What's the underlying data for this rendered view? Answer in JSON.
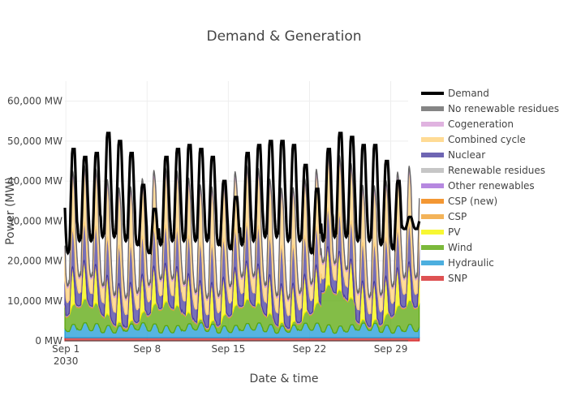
{
  "chart_data": {
    "type": "area",
    "title": "Demand & Generation",
    "xlabel": "Date & time",
    "ylabel": "Power (MW)",
    "ylim": [
      0,
      65000
    ],
    "xlim": [
      "2030-08-31T22:00",
      "2030-09-30T12:00"
    ],
    "grid": true,
    "legend_position": "right",
    "y_ticks": [
      {
        "value": 0,
        "label": "0 MW"
      },
      {
        "value": 10000,
        "label": "10,000 MW"
      },
      {
        "value": 20000,
        "label": "20,000 MW"
      },
      {
        "value": 30000,
        "label": "30,000 MW"
      },
      {
        "value": 40000,
        "label": "40,000 MW"
      },
      {
        "value": 50000,
        "label": "50,000 MW"
      },
      {
        "value": 60000,
        "label": "60,000 MW"
      }
    ],
    "x_ticks": [
      {
        "value": "2030-09-01",
        "label": "Sep 1",
        "sublabel": "2030"
      },
      {
        "value": "2030-09-08",
        "label": "Sep 8",
        "sublabel": ""
      },
      {
        "value": "2030-09-15",
        "label": "Sep 15",
        "sublabel": ""
      },
      {
        "value": "2030-09-22",
        "label": "Sep 22",
        "sublabel": ""
      },
      {
        "value": "2030-09-29",
        "label": "Sep 29",
        "sublabel": ""
      }
    ],
    "daily_demand": {
      "dates": [
        "2030-09-01",
        "2030-09-02",
        "2030-09-03",
        "2030-09-04",
        "2030-09-05",
        "2030-09-06",
        "2030-09-07",
        "2030-09-08",
        "2030-09-09",
        "2030-09-10",
        "2030-09-11",
        "2030-09-12",
        "2030-09-13",
        "2030-09-14",
        "2030-09-15",
        "2030-09-16",
        "2030-09-17",
        "2030-09-18",
        "2030-09-19",
        "2030-09-20",
        "2030-09-21",
        "2030-09-22",
        "2030-09-23",
        "2030-09-24",
        "2030-09-25",
        "2030-09-26",
        "2030-09-27",
        "2030-09-28",
        "2030-09-29",
        "2030-09-30"
      ],
      "peak_mw": [
        48000,
        46000,
        47000,
        52000,
        50000,
        47000,
        39000,
        33000,
        46000,
        48000,
        49000,
        48000,
        46000,
        40000,
        36000,
        47000,
        49000,
        50000,
        50000,
        49000,
        44000,
        38000,
        48000,
        52000,
        51000,
        49000,
        49000,
        45000,
        40000,
        31000
      ],
      "trough_mw": [
        22000,
        25000,
        25000,
        26000,
        26000,
        25000,
        24000,
        22000,
        24000,
        25000,
        25000,
        25000,
        25000,
        24000,
        23000,
        24000,
        25000,
        26000,
        26000,
        25000,
        25000,
        22000,
        25000,
        26000,
        26000,
        25000,
        25000,
        24000,
        23000,
        28000
      ]
    },
    "series": [
      {
        "name": "SNP",
        "color": "#d62728",
        "level_mw": 800
      },
      {
        "name": "Hydraulic",
        "color": "#1f9bd7",
        "level_mw": 3000
      },
      {
        "name": "Wind",
        "color": "#5aa70a",
        "level_mw": 6000
      },
      {
        "name": "PV",
        "color": "#f5f500",
        "peak_mw": 9000
      },
      {
        "name": "CSP",
        "color": "#f0a030",
        "level_mw": 300
      },
      {
        "name": "CSP (new)",
        "color": "#f07d00",
        "level_mw": 0
      },
      {
        "name": "Other renewables",
        "color": "#a46ad8",
        "level_mw": 200
      },
      {
        "name": "Renewable residues",
        "color": "#b8b8b8",
        "level_mw": 200
      },
      {
        "name": "Nuclear",
        "color": "#4a3fa0",
        "level_mw": 7000
      },
      {
        "name": "Combined cycle",
        "color": "#ffd27a",
        "level_mw": 12000
      },
      {
        "name": "Cogeneration",
        "color": "#d8a0d8",
        "level_mw": 800
      },
      {
        "name": "No renewable residues",
        "color": "#666666",
        "level_mw": 600
      },
      {
        "name": "Demand",
        "color": "#000000",
        "level_mw": 0
      }
    ],
    "legend": [
      "Demand",
      "No renewable residues",
      "Cogeneration",
      "Combined cycle",
      "Nuclear",
      "Renewable residues",
      "Other renewables",
      "CSP (new)",
      "CSP",
      "PV",
      "Wind",
      "Hydraulic",
      "SNP"
    ]
  }
}
